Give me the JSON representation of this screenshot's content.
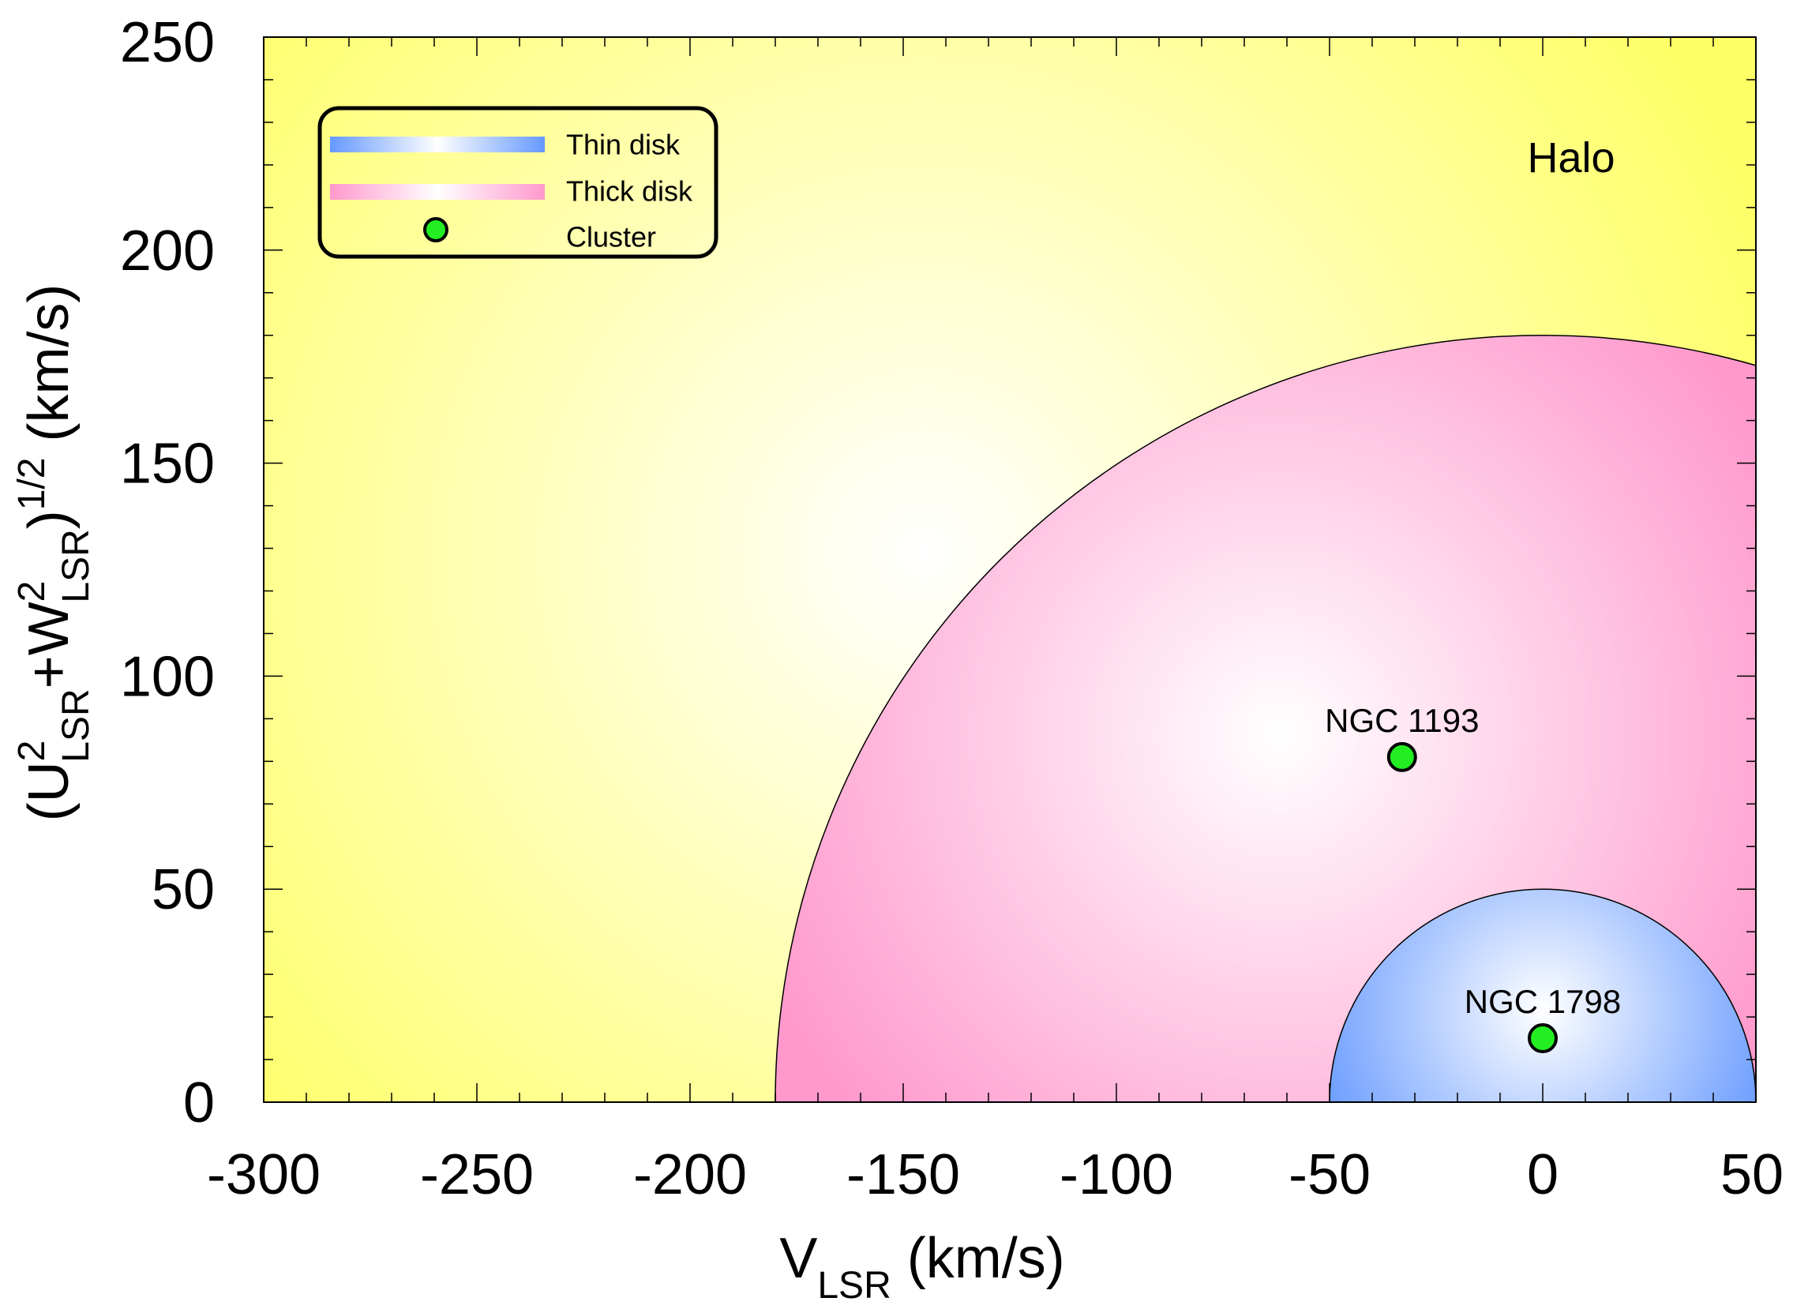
{
  "chart_data": {
    "type": "scatter",
    "xlabel": {
      "main": "V",
      "sub": "LSR",
      "unit": " (km/s)"
    },
    "ylabel": {
      "open": "(U",
      "sup1": "2",
      "sub1": "LSR",
      "plus": "+W",
      "sup2": "2",
      "sub2": "LSR",
      "close": ")",
      "sup3": "1/2",
      "unit": " (km/s)"
    },
    "xlim": [
      -300,
      50
    ],
    "ylim": [
      0,
      250
    ],
    "xticks": [
      "-300",
      "-250",
      "-200",
      "-150",
      "-100",
      "-50",
      "0",
      "50"
    ],
    "yticks": [
      "0",
      "50",
      "100",
      "150",
      "200",
      "250"
    ],
    "x_major_step": 50,
    "x_minor_step": 10,
    "y_major_step": 50,
    "y_minor_step": 10,
    "grid": false,
    "regions": [
      {
        "name": "Halo",
        "label": "Halo",
        "colors": [
          "#ffff66",
          "#ffffff"
        ]
      },
      {
        "name": "Thick disk",
        "center": [
          0,
          0
        ],
        "radius": 180,
        "colors": [
          "#ff99cc",
          "#ffffff"
        ]
      },
      {
        "name": "Thin disk",
        "center": [
          0,
          0
        ],
        "radius": 50,
        "colors": [
          "#6699ff",
          "#ffffff"
        ]
      }
    ],
    "points": [
      {
        "label": "NGC 1193",
        "x": -33,
        "y": 81
      },
      {
        "label": "NGC 1798",
        "x": 0,
        "y": 15
      }
    ],
    "point_color": "#22ee22",
    "legend": {
      "position": "top-left",
      "entries": [
        {
          "label": "Thin disk",
          "kind": "gradient",
          "colors": [
            "#6699ff",
            "#ffffff"
          ]
        },
        {
          "label": "Thick disk",
          "kind": "gradient",
          "colors": [
            "#ff99cc",
            "#ffffff"
          ]
        },
        {
          "label": "Cluster",
          "kind": "marker",
          "color": "#22ee22"
        }
      ]
    }
  }
}
